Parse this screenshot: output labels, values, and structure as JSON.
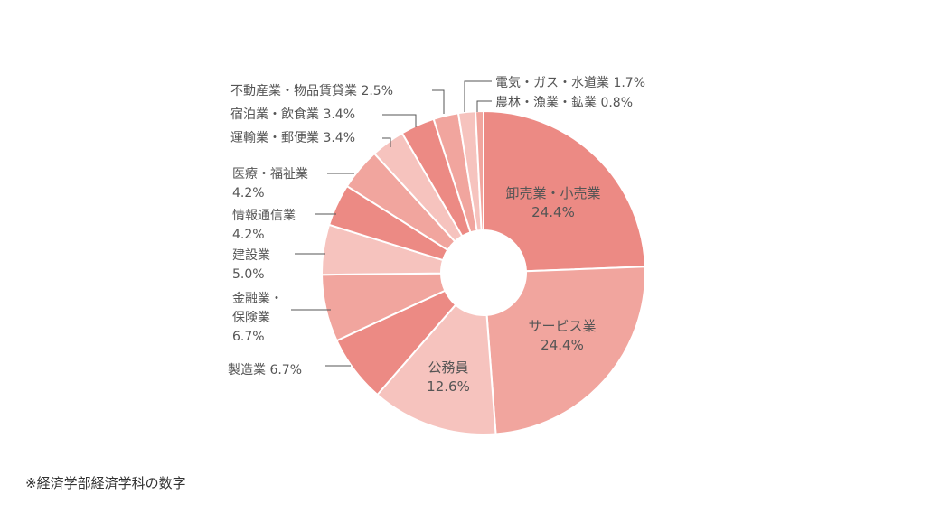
{
  "chart_data": {
    "type": "pie",
    "subtype": "donut",
    "unit": "%",
    "categories": [
      "卸売業・小売業",
      "サービス業",
      "公務員",
      "製造業",
      "金融業・保険業",
      "建設業",
      "情報通信業",
      "医療・福祉業",
      "運輸業・郵便業",
      "宿泊業・飲食業",
      "不動産業・物品賃貸業",
      "電気・ガス・水道業",
      "農林・漁業・鉱業"
    ],
    "values": [
      24.4,
      24.4,
      12.6,
      6.7,
      6.7,
      5.0,
      4.2,
      4.2,
      3.4,
      3.4,
      2.5,
      1.7,
      0.8
    ],
    "value_labels": [
      "24.4%",
      "24.4%",
      "12.6%",
      "6.7%",
      "6.7%",
      "5.0%",
      "4.2%",
      "4.2%",
      "3.4%",
      "3.4%",
      "2.5%",
      "1.7%",
      "0.8%"
    ],
    "colors": [
      "#ec8a84",
      "#f1a59e",
      "#f6c3be",
      "#ec8a84",
      "#f1a59e",
      "#f6c3be",
      "#ec8a84",
      "#f1a59e",
      "#f6c3be",
      "#ec8a84",
      "#f1a59e",
      "#f6c3be",
      "#f1a59e"
    ],
    "inner_radius_fraction": 0.25,
    "start": "top, clockwise",
    "legend": "none"
  },
  "footnote": "※経済学部経済学科の数字"
}
